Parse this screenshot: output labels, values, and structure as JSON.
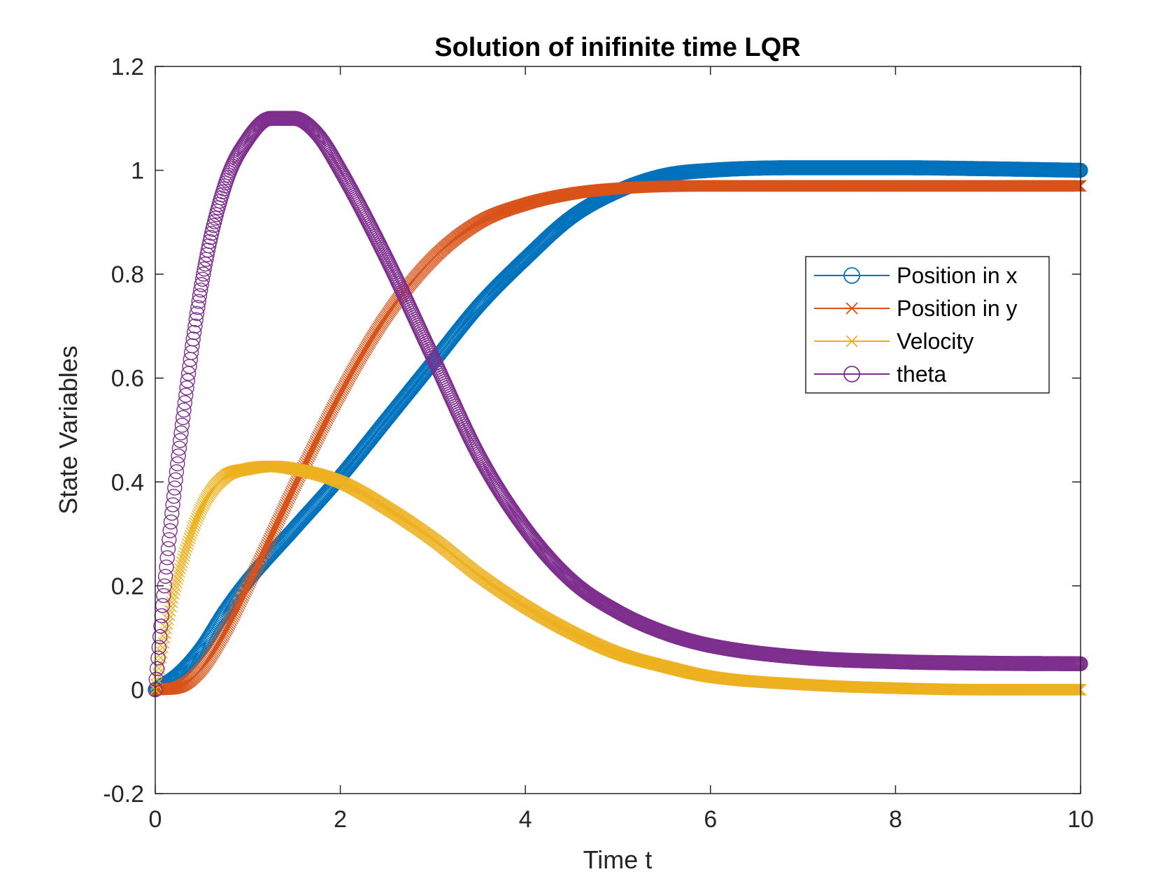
{
  "chart_data": {
    "type": "scatter",
    "title": "Solution of inifinite time LQR",
    "xlabel": "Time t",
    "ylabel": "State Variables",
    "xlim": [
      0,
      10
    ],
    "ylim": [
      -0.2,
      1.2
    ],
    "xticks": [
      0,
      2,
      4,
      6,
      8,
      10
    ],
    "yticks": [
      -0.2,
      0,
      0.2,
      0.4,
      0.6,
      0.8,
      1,
      1.2
    ],
    "xtick_labels": [
      "0",
      "2",
      "4",
      "6",
      "8",
      "10"
    ],
    "ytick_labels": [
      "-0.2",
      "0",
      "0.2",
      "0.4",
      "0.6",
      "0.8",
      "1",
      "1.2"
    ],
    "grid": false,
    "legend": {
      "placement": "right"
    },
    "series": [
      {
        "name": "Position in x",
        "color": "#0072BD",
        "marker": "circle-icon",
        "x": [
          0,
          0.25,
          0.5,
          0.75,
          1,
          1.5,
          2,
          2.5,
          3,
          3.5,
          4,
          4.5,
          5,
          5.5,
          6,
          7,
          8,
          9,
          10
        ],
        "y": [
          0,
          0.03,
          0.08,
          0.15,
          0.21,
          0.31,
          0.41,
          0.52,
          0.63,
          0.74,
          0.83,
          0.91,
          0.96,
          0.99,
          1.0,
          1.005,
          1.005,
          1.003,
          1.0
        ]
      },
      {
        "name": "Position in y",
        "color": "#D95319",
        "marker": "cross-icon",
        "x": [
          0,
          0.25,
          0.5,
          0.75,
          1,
          1.5,
          2,
          2.5,
          3,
          3.5,
          4,
          4.5,
          5,
          6,
          7,
          8,
          10
        ],
        "y": [
          0,
          0.005,
          0.04,
          0.11,
          0.2,
          0.39,
          0.57,
          0.72,
          0.83,
          0.9,
          0.935,
          0.955,
          0.965,
          0.97,
          0.97,
          0.97,
          0.97
        ]
      },
      {
        "name": "Velocity",
        "color": "#EDB120",
        "marker": "cross-icon",
        "x": [
          0,
          0.1,
          0.25,
          0.5,
          0.75,
          1,
          1.25,
          1.5,
          2,
          2.5,
          3,
          3.5,
          4,
          4.5,
          5,
          5.5,
          6,
          7,
          8,
          9,
          10
        ],
        "y": [
          0,
          0.1,
          0.22,
          0.35,
          0.41,
          0.425,
          0.43,
          0.425,
          0.4,
          0.35,
          0.29,
          0.22,
          0.16,
          0.11,
          0.07,
          0.045,
          0.025,
          0.01,
          0.003,
          0.0,
          0.0
        ]
      },
      {
        "name": "theta",
        "color": "#7E2F8E",
        "marker": "circle-icon",
        "x": [
          0,
          0.1,
          0.25,
          0.5,
          0.75,
          1,
          1.25,
          1.5,
          1.75,
          2,
          2.5,
          3,
          3.5,
          4,
          4.5,
          5,
          5.5,
          6,
          7,
          8,
          9,
          10
        ],
        "y": [
          0,
          0.2,
          0.45,
          0.78,
          0.97,
          1.06,
          1.1,
          1.1,
          1.07,
          1.0,
          0.83,
          0.64,
          0.45,
          0.31,
          0.21,
          0.15,
          0.11,
          0.085,
          0.062,
          0.054,
          0.051,
          0.05
        ]
      }
    ]
  }
}
